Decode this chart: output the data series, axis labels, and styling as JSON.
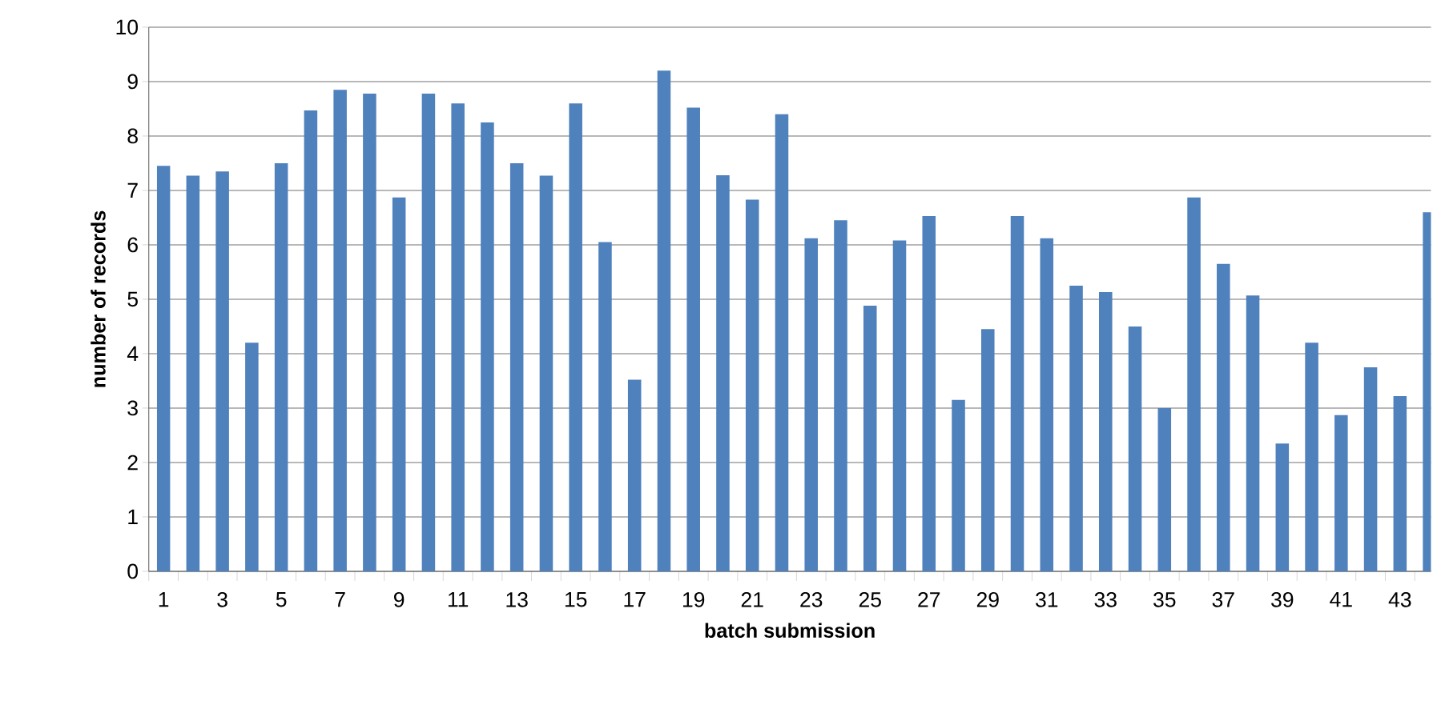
{
  "chart_data": {
    "type": "bar",
    "xlabel": "batch submission",
    "ylabel": "number of records",
    "categories": [
      "1",
      null,
      "3",
      null,
      "5",
      null,
      "7",
      null,
      "9",
      null,
      "11",
      null,
      "13",
      null,
      "15",
      null,
      "17",
      null,
      "19",
      null,
      "21",
      null,
      "23",
      null,
      "25",
      null,
      "27",
      null,
      "29",
      null,
      "31",
      null,
      "33",
      null,
      "35",
      null,
      "37",
      null,
      "39",
      null,
      "41",
      null,
      "43",
      null
    ],
    "values": [
      7.45,
      7.27,
      7.35,
      4.2,
      7.5,
      8.47,
      8.85,
      8.78,
      6.87,
      8.78,
      8.6,
      8.25,
      7.5,
      7.27,
      8.6,
      6.05,
      3.52,
      9.2,
      8.52,
      7.28,
      6.83,
      8.4,
      6.12,
      6.45,
      4.88,
      6.08,
      6.53,
      3.15,
      4.45,
      6.53,
      6.12,
      5.25,
      5.13,
      4.5,
      3.0,
      6.87,
      5.65,
      5.07,
      2.35,
      4.2,
      2.87,
      3.75,
      3.22,
      6.6
    ],
    "color": "#4f81bd",
    "ylim": [
      0,
      10
    ],
    "yticks": [
      0,
      1,
      2,
      3,
      4,
      5,
      6,
      7,
      8,
      9,
      10
    ],
    "grid": "y"
  }
}
